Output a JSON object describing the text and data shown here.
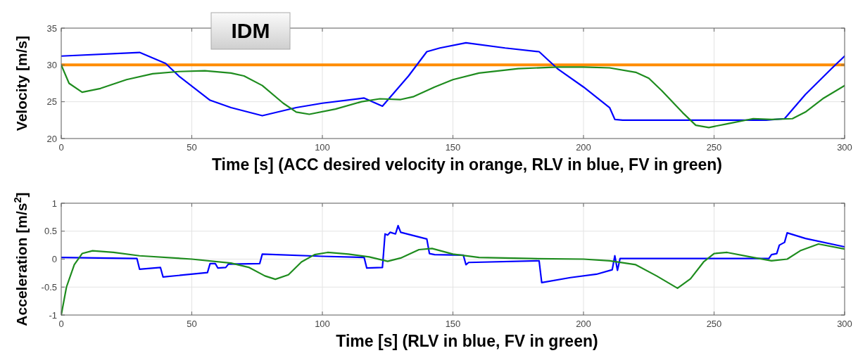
{
  "chart_data": [
    {
      "type": "line",
      "title": "IDM",
      "xlabel": "Time [s] (ACC desired velocity in orange, RLV in blue, FV in green)",
      "ylabel": "Velocity [m/s]",
      "xlim": [
        0,
        300
      ],
      "xticks": [
        0,
        50,
        100,
        150,
        200,
        250,
        300
      ],
      "ylim": [
        20,
        35
      ],
      "yticks": [
        20,
        25,
        30,
        35
      ],
      "grid": true,
      "series": [
        {
          "color": "#ff8c00",
          "x": [
            0,
            300
          ],
          "values": [
            30,
            30
          ]
        },
        {
          "color": "#0000ff",
          "x": [
            0,
            30,
            40,
            45,
            57,
            65,
            77,
            90,
            100,
            116,
            123,
            133,
            140,
            145,
            155,
            170,
            183,
            190,
            200,
            210,
            212,
            215,
            230,
            250,
            270,
            277,
            285,
            295,
            300
          ],
          "values": [
            31.2,
            31.7,
            30.2,
            28.5,
            25.2,
            24.2,
            23.1,
            24.2,
            24.8,
            25.5,
            24.4,
            28.5,
            31.8,
            32.3,
            33.0,
            32.3,
            31.8,
            29.5,
            27.0,
            24.2,
            22.6,
            22.5,
            22.5,
            22.5,
            22.5,
            22.7,
            26.0,
            29.5,
            31.2
          ]
        },
        {
          "color": "#1e8c1e",
          "x": [
            0,
            3,
            8,
            15,
            25,
            35,
            45,
            55,
            65,
            70,
            77,
            85,
            90,
            95,
            105,
            115,
            122,
            130,
            135,
            143,
            150,
            160,
            175,
            190,
            200,
            210,
            220,
            225,
            230,
            238,
            243,
            248,
            255,
            265,
            272,
            280,
            285,
            292,
            300
          ],
          "values": [
            30,
            27.5,
            26.3,
            26.8,
            28.0,
            28.8,
            29.1,
            29.2,
            28.9,
            28.5,
            27.2,
            24.8,
            23.6,
            23.3,
            24.0,
            25.0,
            25.4,
            25.3,
            25.7,
            27.0,
            28.0,
            28.9,
            29.5,
            29.7,
            29.7,
            29.6,
            29.0,
            28.2,
            26.5,
            23.5,
            21.8,
            21.5,
            22.0,
            22.7,
            22.6,
            22.7,
            23.6,
            25.5,
            27.2
          ]
        }
      ]
    },
    {
      "type": "line",
      "xlabel": "Time [s] (RLV in blue, FV in green)",
      "ylabel": "Acceleration [m/s$^{2}$]",
      "xlim": [
        0,
        300
      ],
      "xticks": [
        0,
        50,
        100,
        150,
        200,
        250,
        300
      ],
      "ylim": [
        -1,
        1
      ],
      "yticks": [
        -1,
        -0.5,
        0,
        0.5,
        1
      ],
      "grid": true,
      "series": [
        {
          "color": "#0000ff",
          "x": [
            0,
            29,
            30,
            38,
            39,
            56,
            57,
            59,
            60,
            63,
            64,
            76,
            77,
            100,
            116,
            117,
            123,
            124,
            125,
            126,
            128,
            129,
            130,
            140,
            141,
            143,
            154,
            155,
            156,
            183,
            184,
            195,
            205,
            211,
            212,
            213,
            214,
            250,
            271,
            272,
            274,
            275,
            277,
            278,
            285,
            300
          ],
          "values": [
            0.03,
            0.01,
            -0.18,
            -0.15,
            -0.32,
            -0.24,
            -0.08,
            -0.08,
            -0.16,
            -0.15,
            -0.09,
            -0.08,
            0.09,
            0.05,
            0.03,
            -0.16,
            -0.15,
            0.45,
            0.43,
            0.48,
            0.45,
            0.6,
            0.48,
            0.36,
            0.1,
            0.08,
            0.07,
            -0.1,
            -0.06,
            -0.03,
            -0.42,
            -0.33,
            -0.27,
            -0.19,
            0.06,
            -0.2,
            0.01,
            0.01,
            0.01,
            0.08,
            0.1,
            0.25,
            0.3,
            0.47,
            0.37,
            0.22
          ]
        },
        {
          "color": "#1e8c1e",
          "x": [
            0,
            2,
            5,
            8,
            12,
            20,
            30,
            50,
            65,
            72,
            78,
            82,
            87,
            92,
            97,
            102,
            110,
            118,
            125,
            130,
            137,
            142,
            150,
            160,
            180,
            200,
            210,
            220,
            228,
            236,
            241,
            246,
            250,
            255,
            265,
            272,
            278,
            283,
            290,
            300
          ],
          "values": [
            -1,
            -0.5,
            -0.1,
            0.1,
            0.15,
            0.12,
            0.06,
            0.0,
            -0.07,
            -0.15,
            -0.3,
            -0.36,
            -0.28,
            -0.05,
            0.08,
            0.12,
            0.09,
            0.04,
            -0.04,
            0.02,
            0.17,
            0.19,
            0.09,
            0.03,
            0.01,
            0.0,
            -0.03,
            -0.1,
            -0.3,
            -0.52,
            -0.35,
            -0.05,
            0.1,
            0.12,
            0.03,
            -0.03,
            0.0,
            0.15,
            0.27,
            0.18
          ]
        }
      ]
    }
  ]
}
